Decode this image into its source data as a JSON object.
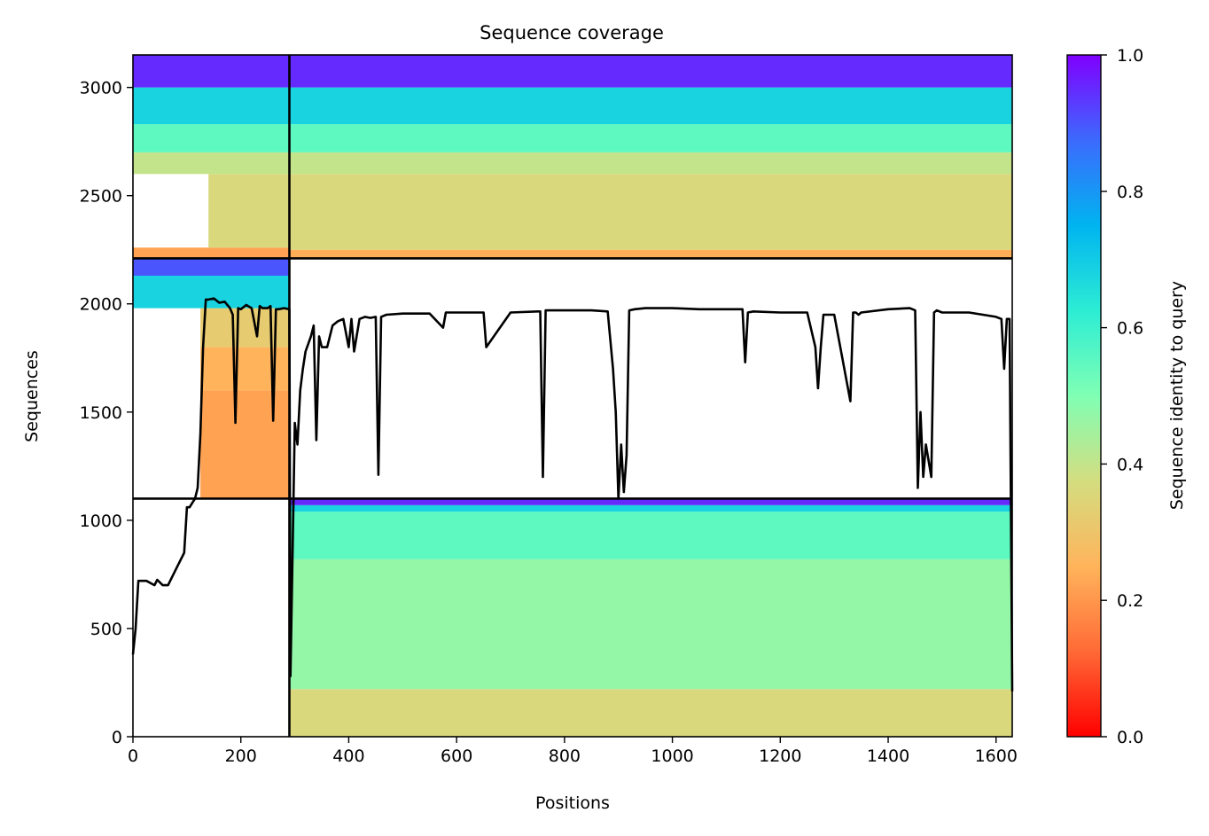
{
  "chart_data": {
    "type": "heatmap",
    "title": "Sequence coverage",
    "xlabel": "Positions",
    "ylabel": "Sequences",
    "xlim": [
      0,
      1630
    ],
    "ylim": [
      0,
      3150
    ],
    "x_ticks": [
      0,
      200,
      400,
      600,
      800,
      1000,
      1200,
      1400,
      1600
    ],
    "y_ticks": [
      0,
      500,
      1000,
      1500,
      2000,
      2500,
      3000
    ],
    "grid": false,
    "colorbar": {
      "label": "Sequence identity to query",
      "range": [
        0,
        1
      ],
      "ticks": [
        0.0,
        0.2,
        0.4,
        0.6,
        0.8,
        1.0
      ],
      "tick_labels": [
        "0.0",
        "0.2",
        "0.4",
        "0.6",
        "0.8",
        "1.0"
      ],
      "colormap": "rainbow_r"
    },
    "segment_boundaries": {
      "x": [
        290
      ],
      "y": [
        1100,
        2210
      ]
    },
    "blocks": [
      {
        "x": [
          290,
          1630
        ],
        "y": [
          0,
          220
        ],
        "identity": 0.36
      },
      {
        "x": [
          290,
          1630
        ],
        "y": [
          220,
          820
        ],
        "identity": 0.47
      },
      {
        "x": [
          290,
          1630
        ],
        "y": [
          820,
          1040
        ],
        "identity": 0.55
      },
      {
        "x": [
          290,
          1630
        ],
        "y": [
          1040,
          1070
        ],
        "identity": 0.68
      },
      {
        "x": [
          290,
          1630
        ],
        "y": [
          1070,
          1100
        ],
        "identity": 0.95
      },
      {
        "x": [
          125,
          290
        ],
        "y": [
          1100,
          1600
        ],
        "identity": 0.22
      },
      {
        "x": [
          125,
          290
        ],
        "y": [
          1600,
          1800
        ],
        "identity": 0.25
      },
      {
        "x": [
          125,
          290
        ],
        "y": [
          1800,
          1980
        ],
        "identity": 0.32
      },
      {
        "x": [
          0,
          290
        ],
        "y": [
          1980,
          2130
        ],
        "identity": 0.68
      },
      {
        "x": [
          0,
          290
        ],
        "y": [
          2130,
          2210
        ],
        "identity": 0.9
      },
      {
        "x": [
          0,
          290
        ],
        "y": [
          2210,
          2260
        ],
        "identity": 0.22
      },
      {
        "x": [
          140,
          290
        ],
        "y": [
          2260,
          2600
        ],
        "identity": 0.36
      },
      {
        "x": [
          0,
          290
        ],
        "y": [
          2600,
          2700
        ],
        "identity": 0.4
      },
      {
        "x": [
          0,
          290
        ],
        "y": [
          2700,
          2830
        ],
        "identity": 0.55
      },
      {
        "x": [
          0,
          290
        ],
        "y": [
          2830,
          3000
        ],
        "identity": 0.68
      },
      {
        "x": [
          0,
          290
        ],
        "y": [
          3000,
          3150
        ],
        "identity": 0.95
      },
      {
        "x": [
          290,
          1630
        ],
        "y": [
          2210,
          2250
        ],
        "identity": 0.24
      },
      {
        "x": [
          290,
          1630
        ],
        "y": [
          2250,
          2600
        ],
        "identity": 0.36
      },
      {
        "x": [
          290,
          1630
        ],
        "y": [
          2600,
          2700
        ],
        "identity": 0.4
      },
      {
        "x": [
          290,
          1630
        ],
        "y": [
          2700,
          2830
        ],
        "identity": 0.55
      },
      {
        "x": [
          290,
          1630
        ],
        "y": [
          2830,
          3000
        ],
        "identity": 0.68
      },
      {
        "x": [
          290,
          1630
        ],
        "y": [
          3000,
          3150
        ],
        "identity": 0.95
      }
    ],
    "coverage_line": {
      "name": "",
      "x": [
        0,
        5,
        10,
        15,
        25,
        40,
        45,
        55,
        65,
        75,
        85,
        95,
        100,
        105,
        110,
        115,
        120,
        125,
        130,
        135,
        140,
        150,
        160,
        170,
        180,
        185,
        190,
        195,
        200,
        210,
        220,
        230,
        235,
        240,
        250,
        255,
        260,
        265,
        270,
        280,
        290,
        292,
        300,
        305,
        310,
        315,
        320,
        330,
        335,
        340,
        345,
        350,
        360,
        370,
        380,
        390,
        400,
        405,
        410,
        420,
        430,
        440,
        450,
        455,
        460,
        465,
        470,
        500,
        550,
        575,
        580,
        600,
        650,
        655,
        700,
        750,
        755,
        760,
        765,
        800,
        850,
        880,
        890,
        895,
        900,
        905,
        910,
        915,
        920,
        930,
        950,
        1000,
        1050,
        1100,
        1130,
        1135,
        1140,
        1150,
        1200,
        1250,
        1265,
        1270,
        1275,
        1280,
        1300,
        1330,
        1335,
        1340,
        1345,
        1350,
        1400,
        1440,
        1450,
        1455,
        1460,
        1465,
        1470,
        1480,
        1485,
        1490,
        1500,
        1550,
        1600,
        1610,
        1615,
        1620,
        1625,
        1630
      ],
      "y": [
        380,
        500,
        720,
        720,
        720,
        700,
        725,
        700,
        700,
        750,
        800,
        850,
        1060,
        1060,
        1080,
        1100,
        1150,
        1400,
        1800,
        2020,
        2020,
        2025,
        2005,
        2010,
        1980,
        1950,
        1450,
        1980,
        1975,
        1995,
        1980,
        1850,
        1990,
        1980,
        1980,
        1990,
        1460,
        1975,
        1975,
        1980,
        1975,
        280,
        1450,
        1350,
        1600,
        1700,
        1780,
        1850,
        1900,
        1370,
        1850,
        1800,
        1800,
        1900,
        1920,
        1930,
        1800,
        1930,
        1780,
        1930,
        1940,
        1935,
        1940,
        1210,
        1940,
        1945,
        1950,
        1955,
        1955,
        1890,
        1960,
        1960,
        1960,
        1800,
        1960,
        1965,
        1965,
        1200,
        1970,
        1970,
        1970,
        1965,
        1700,
        1500,
        1100,
        1350,
        1130,
        1300,
        1970,
        1975,
        1980,
        1980,
        1975,
        1975,
        1975,
        1730,
        1960,
        1965,
        1960,
        1960,
        1800,
        1610,
        1800,
        1950,
        1950,
        1550,
        1960,
        1960,
        1950,
        1960,
        1975,
        1980,
        1970,
        1150,
        1500,
        1200,
        1350,
        1200,
        1960,
        1970,
        1960,
        1960,
        1940,
        1930,
        1700,
        1930,
        1930,
        210
      ]
    }
  }
}
